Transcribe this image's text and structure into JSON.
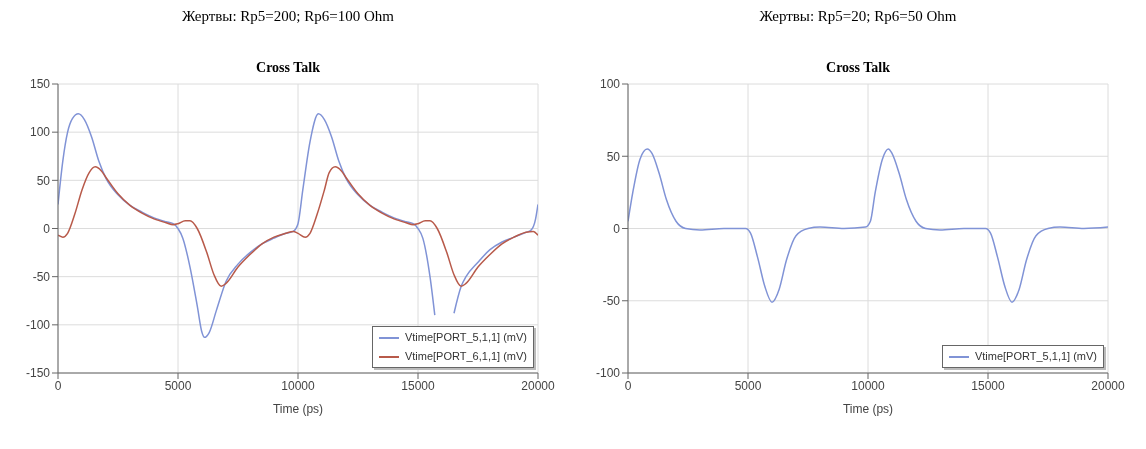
{
  "chart_data": [
    {
      "type": "line",
      "title": "Жертвы: Rp5=200; Rp6=100 Ohm",
      "subtitle": "Cross Talk",
      "xlabel": "Time (ps)",
      "xlim": [
        0,
        20000
      ],
      "xticks": [
        0,
        5000,
        10000,
        15000,
        20000
      ],
      "ylim": [
        -150,
        150
      ],
      "yticks": [
        -150,
        -100,
        -50,
        0,
        50,
        100,
        150
      ],
      "grid": true,
      "legend": "bottom right",
      "marker": "none",
      "line_style": "solid",
      "series": [
        {
          "name": "Vtime[PORT_5,1,1] (mV)",
          "color": "#8093d6",
          "x": [
            0,
            200,
            400,
            600,
            850,
            1100,
            1400,
            1700,
            2000,
            2500,
            3000,
            3500,
            4000,
            4500,
            4800,
            5000,
            5200,
            5500,
            5800,
            6000,
            6100,
            6300,
            6600,
            7000,
            7500,
            8000,
            8500,
            9000,
            9500,
            9800,
            10000,
            10200,
            10500,
            10850,
            11100,
            11400,
            11700,
            12000,
            12500,
            13000,
            13500,
            14000,
            14500,
            14800,
            15000,
            15200,
            15500,
            15700,
            16000,
            16500,
            16800,
            17000,
            17500,
            18000,
            18500,
            19000,
            19500,
            19700,
            19900,
            20000
          ],
          "values": [
            25,
            70,
            100,
            114,
            119,
            113,
            95,
            70,
            52,
            35,
            24,
            17,
            11,
            7,
            5,
            0,
            -10,
            -40,
            -80,
            -108,
            -113,
            -108,
            -85,
            -55,
            -37,
            -25,
            -16,
            -10,
            -5,
            -3,
            5,
            40,
            90,
            119,
            113,
            95,
            70,
            52,
            35,
            24,
            17,
            11,
            7,
            5,
            0,
            -10,
            -50,
            -90,
            null,
            -88,
            -60,
            -50,
            -35,
            -22,
            -14,
            -9,
            -4,
            -2,
            10,
            25
          ]
        },
        {
          "name": "Vtime[PORT_6,1,1] (mV)",
          "color": "#b85a4a",
          "x": [
            0,
            200,
            400,
            700,
            1000,
            1300,
            1550,
            1800,
            2000,
            2500,
            3000,
            3500,
            4000,
            4500,
            4800,
            5000,
            5300,
            5500,
            5800,
            6200,
            6500,
            6800,
            7000,
            7500,
            8000,
            8500,
            9000,
            9500,
            9800,
            10000,
            10300,
            10500,
            10800,
            11100,
            11300,
            11550,
            11800,
            12000,
            12500,
            13000,
            13500,
            14000,
            14500,
            14800,
            15000,
            15300,
            15500,
            15800,
            16200,
            16500,
            16800,
            17000,
            17500,
            18000,
            18500,
            19000,
            19500,
            19800,
            20000
          ],
          "values": [
            -7,
            -9,
            -5,
            15,
            40,
            58,
            64,
            60,
            53,
            36,
            24,
            16,
            10,
            6,
            4,
            5,
            8,
            8,
            0,
            -25,
            -48,
            -60,
            -57,
            -40,
            -27,
            -16,
            -9,
            -5,
            -3,
            -5,
            -9,
            -5,
            15,
            40,
            58,
            64,
            60,
            53,
            36,
            24,
            16,
            10,
            6,
            4,
            5,
            8,
            8,
            0,
            -25,
            -48,
            -60,
            -57,
            -40,
            -27,
            -16,
            -9,
            -4,
            -3,
            -7
          ]
        }
      ]
    },
    {
      "type": "line",
      "title": "Жертвы: Rp5=20; Rp6=50 Ohm",
      "subtitle": "Cross Talk",
      "xlabel": "Time (ps)",
      "xlim": [
        0,
        20000
      ],
      "xticks": [
        0,
        5000,
        10000,
        15000,
        20000
      ],
      "ylim": [
        -100,
        100
      ],
      "yticks": [
        -100,
        -50,
        0,
        50,
        100
      ],
      "grid": true,
      "legend": "bottom right",
      "marker": "none",
      "line_style": "solid",
      "series": [
        {
          "name": "Vtime[PORT_5,1,1] (mV)",
          "color": "#8093d6",
          "x": [
            0,
            200,
            500,
            800,
            1000,
            1300,
            1600,
            2000,
            2400,
            3000,
            4000,
            4900,
            5100,
            5400,
            5700,
            6000,
            6300,
            6600,
            7000,
            7500,
            8000,
            9000,
            9900,
            10100,
            10300,
            10600,
            10850,
            11000,
            11300,
            11600,
            12000,
            12400,
            13000,
            14000,
            14900,
            15100,
            15400,
            15700,
            16000,
            16300,
            16600,
            17000,
            17500,
            18000,
            19000,
            20000
          ],
          "values": [
            5,
            25,
            48,
            55,
            52,
            38,
            20,
            5,
            0,
            -1,
            0,
            0,
            -3,
            -20,
            -40,
            -51,
            -42,
            -22,
            -5,
            0,
            1,
            0,
            1,
            5,
            25,
            48,
            55,
            52,
            38,
            20,
            5,
            0,
            -1,
            0,
            0,
            -3,
            -20,
            -40,
            -51,
            -42,
            -22,
            -5,
            0,
            1,
            0,
            1
          ]
        }
      ]
    }
  ]
}
